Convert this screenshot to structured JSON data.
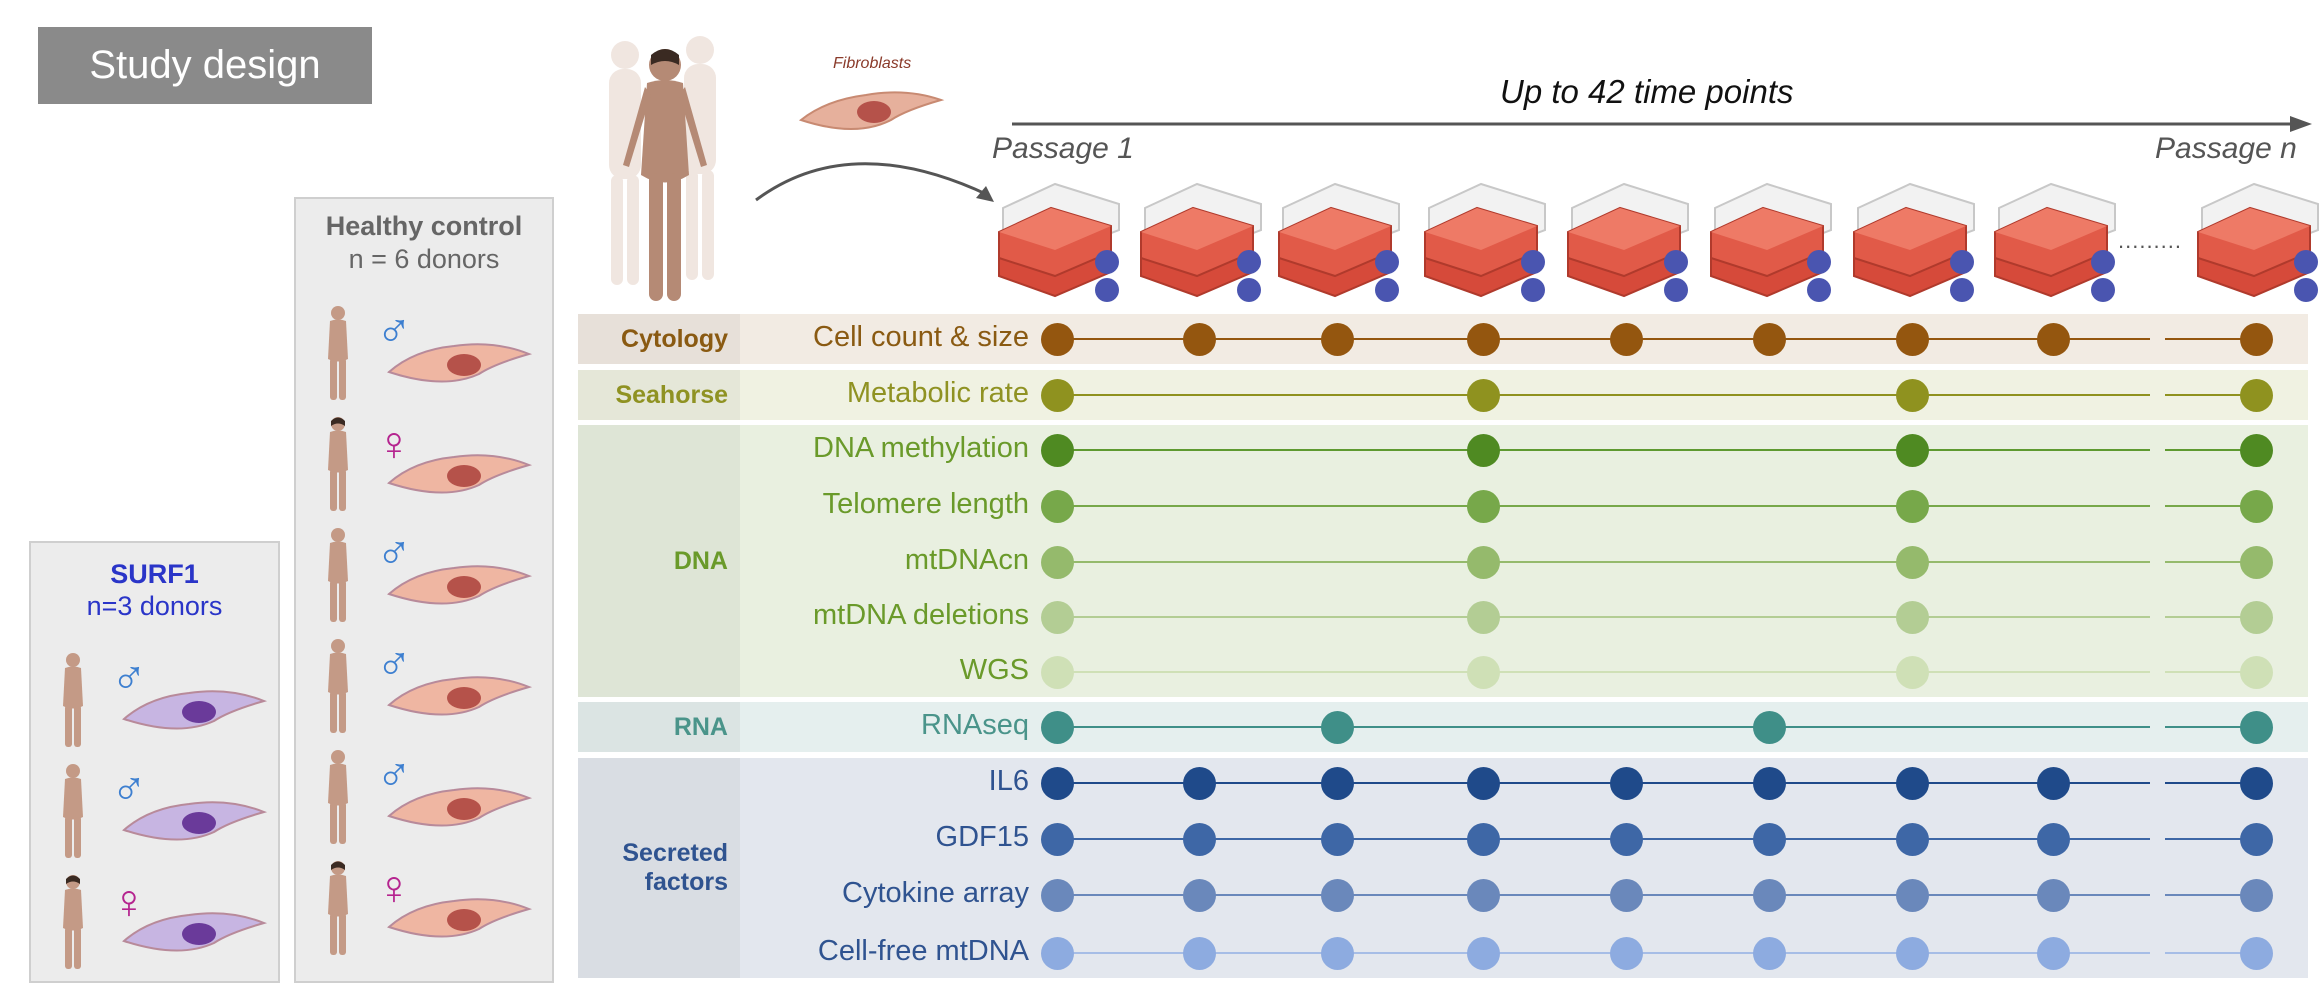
{
  "title": "Study design",
  "source": {
    "cell_label": "Fibroblasts"
  },
  "timeline": {
    "header": "Up to 42 time points",
    "start_label": "Passage 1",
    "end_label": "Passage n",
    "ellipsis": "........."
  },
  "groups": {
    "healthy": {
      "name": "Healthy control",
      "count": "n = 6 donors",
      "donors": [
        {
          "sex": "male",
          "symbol": "♂"
        },
        {
          "sex": "female",
          "symbol": "♀"
        },
        {
          "sex": "male",
          "symbol": "♂"
        },
        {
          "sex": "male",
          "symbol": "♂"
        },
        {
          "sex": "male",
          "symbol": "♂"
        },
        {
          "sex": "female",
          "symbol": "♀"
        }
      ]
    },
    "surf1": {
      "name": "SURF1",
      "count": "n=3 donors",
      "donors": [
        {
          "sex": "male",
          "symbol": "♂"
        },
        {
          "sex": "male",
          "symbol": "♂"
        },
        {
          "sex": "female",
          "symbol": "♀"
        }
      ]
    }
  },
  "categories": [
    {
      "label": "Cytology",
      "color": "#8a5a12",
      "bg": "#f2ebe3"
    },
    {
      "label": "Seahorse",
      "color": "#8f9222",
      "bg": "#f0f2e2"
    },
    {
      "label": "DNA",
      "color": "#6a9a2a",
      "bg": "#e9f0e0"
    },
    {
      "label": "RNA",
      "color": "#4a948a",
      "bg": "#e5efee"
    },
    {
      "label": "Secreted\nfactors",
      "color": "#2f5390",
      "bg": "#e3e7ee"
    }
  ],
  "measurements": [
    {
      "category": 0,
      "label": "Cell count & size",
      "color": "#94560f",
      "line": "#94560f",
      "points": [
        0,
        1,
        2,
        3,
        4,
        5,
        6,
        7,
        8
      ]
    },
    {
      "category": 1,
      "label": "Metabolic rate",
      "color": "#8f921f",
      "line": "#8f921f",
      "points": [
        0,
        3,
        6,
        8
      ]
    },
    {
      "category": 2,
      "label": "DNA methylation",
      "color": "#4f8a22",
      "line": "#5e9a30",
      "points": [
        0,
        3,
        6,
        8
      ]
    },
    {
      "category": 2,
      "label": "Telomere length",
      "color": "#77a84a",
      "line": "#77a84a",
      "points": [
        0,
        3,
        6,
        8
      ]
    },
    {
      "category": 2,
      "label": "mtDNAcn",
      "color": "#95ba6c",
      "line": "#95ba6c",
      "points": [
        0,
        3,
        6,
        8
      ]
    },
    {
      "category": 2,
      "label": "mtDNA deletions",
      "color": "#b3cd94",
      "line": "#b3cd94",
      "points": [
        0,
        3,
        6,
        8
      ]
    },
    {
      "category": 2,
      "label": "WGS",
      "color": "#cfe0b6",
      "line": "#cfe0b6",
      "points": [
        0,
        3,
        6,
        8
      ]
    },
    {
      "category": 3,
      "label": "RNAseq",
      "color": "#3f8f88",
      "line": "#3f8f88",
      "points": [
        0,
        2,
        5,
        8
      ]
    },
    {
      "category": 4,
      "label": "IL6",
      "color": "#1f4a8a",
      "line": "#1f4a8a",
      "points": [
        0,
        1,
        2,
        3,
        4,
        5,
        6,
        7,
        8
      ]
    },
    {
      "category": 4,
      "label": "GDF15",
      "color": "#3e67a6",
      "line": "#3e67a6",
      "points": [
        0,
        1,
        2,
        3,
        4,
        5,
        6,
        7,
        8
      ]
    },
    {
      "category": 4,
      "label": "Cytokine array",
      "color": "#6a88bb",
      "line": "#6a88bb",
      "points": [
        0,
        1,
        2,
        3,
        4,
        5,
        6,
        7,
        8
      ]
    },
    {
      "category": 4,
      "label": "Cell-free mtDNA",
      "color": "#8dabe0",
      "line": "#a6bde6",
      "points": [
        0,
        1,
        2,
        3,
        4,
        5,
        6,
        7,
        8
      ]
    }
  ],
  "colors": {
    "male": "#3d7fd0",
    "female": "#b5248f",
    "surf1_text": "#2a35c8",
    "healthy_text": "#666666",
    "flask": "#d64a3a"
  }
}
